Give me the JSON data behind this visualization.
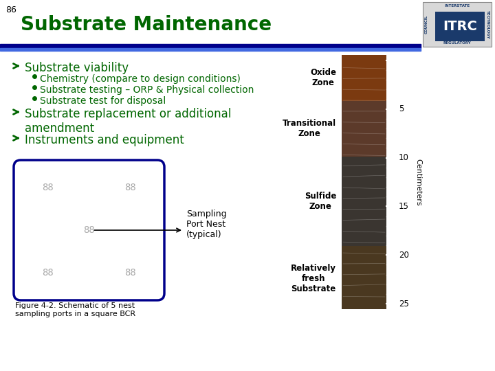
{
  "slide_number": "86",
  "title": "Substrate Maintenance",
  "title_color": "#006600",
  "title_fontsize": 20,
  "slide_number_color": "#000000",
  "bg_color": "#ffffff",
  "header_bar_color1": "#00008B",
  "header_bar_color2": "#4169E1",
  "bullet_color": "#006600",
  "bullet_items": [
    "Substrate viability",
    "Substrate replacement or additional\namendment",
    "Instruments and equipment"
  ],
  "sub_bullets": [
    "Chemistry (compare to design conditions)",
    "Substrate testing – ORP & Physical collection",
    "Substrate test for disposal"
  ],
  "bullet_fontsize": 12,
  "sub_bullet_fontsize": 10,
  "box_color": "#00008B",
  "sampling_label": "Sampling\nPort Nest\n(typical)",
  "figure_caption": "Figure 4-2. Schematic of 5 nest\nsampling ports in a square BCR",
  "zone_labels": [
    "Oxide\nZone",
    "Transitional\nZone",
    "Sulfide\nZone",
    "Relatively\nfresh\nSubstrate"
  ],
  "tick_labels": [
    "5",
    "10",
    "15",
    "20",
    "25"
  ],
  "centimeters_label": "Centimeters",
  "itrc_logo_color": "#1a3a6b"
}
